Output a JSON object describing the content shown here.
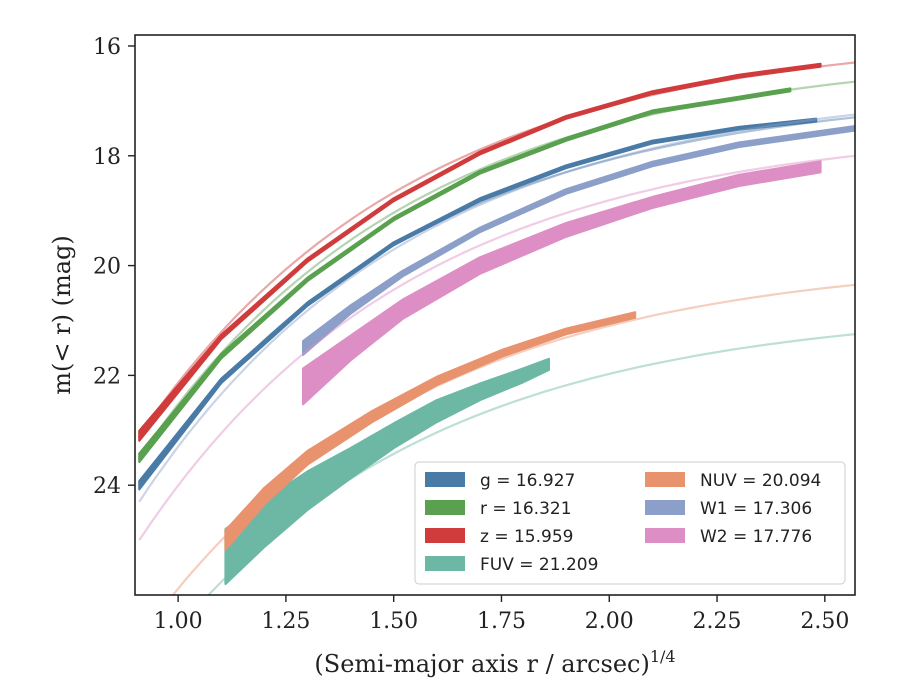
{
  "chart_data": {
    "type": "line",
    "xlabel": "(Semi-major axis r / arcsec)",
    "xlabel_exponent": "1/4",
    "ylabel": "m(< r) (mag)",
    "xlim": [
      0.9,
      2.57
    ],
    "ylim": [
      26.0,
      15.8
    ],
    "y_inverted": true,
    "xticks": [
      "1.00",
      "1.25",
      "1.50",
      "1.75",
      "2.00",
      "2.25",
      "2.50"
    ],
    "yticks": [
      "16",
      "18",
      "20",
      "22",
      "24"
    ],
    "grid": false,
    "legend_placement": "lower-right",
    "series": [
      {
        "name": "g = 16.927",
        "color": "#4a7ba7",
        "legend_column": 0,
        "legend_row": 0,
        "ext_x": [
          0.91,
          2.57
        ],
        "ext_y": [
          24.0,
          17.3
        ],
        "main_x": [
          0.91,
          1.1,
          1.3,
          1.5,
          1.7,
          1.9,
          2.1,
          2.3,
          2.48
        ],
        "main_y": [
          24.0,
          22.1,
          20.7,
          19.6,
          18.8,
          18.2,
          17.75,
          17.5,
          17.35
        ],
        "width": [
          0.15,
          0.08,
          0.06,
          0.05,
          0.05,
          0.05,
          0.05,
          0.05,
          0.05
        ]
      },
      {
        "name": "r = 16.321",
        "color": "#59a14f",
        "legend_column": 0,
        "legend_row": 1,
        "ext_x": [
          0.91,
          2.57
        ],
        "ext_y": [
          23.5,
          16.65
        ],
        "main_x": [
          0.91,
          1.1,
          1.3,
          1.5,
          1.7,
          1.9,
          2.1,
          2.3,
          2.42
        ],
        "main_y": [
          23.5,
          21.65,
          20.25,
          19.15,
          18.3,
          17.7,
          17.2,
          16.95,
          16.8
        ],
        "width": [
          0.15,
          0.08,
          0.06,
          0.05,
          0.05,
          0.05,
          0.05,
          0.05,
          0.05
        ]
      },
      {
        "name": "z = 15.959",
        "color": "#d03b3b",
        "legend_column": 0,
        "legend_row": 2,
        "ext_x": [
          0.91,
          2.57
        ],
        "ext_y": [
          23.1,
          16.3
        ],
        "main_x": [
          0.91,
          1.1,
          1.3,
          1.5,
          1.7,
          1.9,
          2.1,
          2.3,
          2.49
        ],
        "main_y": [
          23.1,
          21.3,
          19.9,
          18.8,
          17.95,
          17.3,
          16.85,
          16.55,
          16.35
        ],
        "width": [
          0.18,
          0.08,
          0.06,
          0.05,
          0.05,
          0.05,
          0.05,
          0.05,
          0.05
        ]
      },
      {
        "name": "FUV = 21.209",
        "color": "#6cb8a4",
        "legend_column": 0,
        "legend_row": 3,
        "ext_x": [
          0.91,
          2.57
        ],
        "ext_y": [
          27.5,
          21.25
        ],
        "main_x": [
          1.11,
          1.2,
          1.3,
          1.4,
          1.5,
          1.6,
          1.7,
          1.8,
          1.86
        ],
        "main_y": [
          25.3,
          24.7,
          24.1,
          23.6,
          23.1,
          22.65,
          22.3,
          22.0,
          21.8
        ],
        "width": [
          1.0,
          0.85,
          0.7,
          0.55,
          0.45,
          0.4,
          0.3,
          0.25,
          0.2
        ]
      },
      {
        "name": "NUV = 20.094",
        "color": "#e8926e",
        "legend_column": 1,
        "legend_row": 0,
        "ext_x": [
          0.91,
          2.57
        ],
        "ext_y": [
          26.8,
          20.35
        ],
        "main_x": [
          1.11,
          1.2,
          1.3,
          1.45,
          1.6,
          1.75,
          1.9,
          2.06
        ],
        "main_y": [
          25.0,
          24.2,
          23.5,
          22.75,
          22.1,
          21.6,
          21.2,
          20.9
        ],
        "width": [
          0.35,
          0.3,
          0.25,
          0.2,
          0.15,
          0.12,
          0.1,
          0.1
        ]
      },
      {
        "name": "W1 = 17.306",
        "color": "#8c9fc8",
        "legend_column": 1,
        "legend_row": 1,
        "ext_x": [
          0.91,
          2.57
        ],
        "ext_y": [
          24.3,
          17.25
        ],
        "main_x": [
          1.29,
          1.4,
          1.52,
          1.7,
          1.9,
          2.1,
          2.3,
          2.57
        ],
        "main_y": [
          21.5,
          20.8,
          20.15,
          19.35,
          18.65,
          18.15,
          17.8,
          17.5
        ],
        "width": [
          0.25,
          0.15,
          0.1,
          0.08,
          0.08,
          0.08,
          0.08,
          0.08
        ]
      },
      {
        "name": "W2 = 17.776",
        "color": "#dd8fc5",
        "legend_column": 1,
        "legend_row": 2,
        "ext_x": [
          0.91,
          2.57
        ],
        "ext_y": [
          25.0,
          18.0
        ],
        "main_x": [
          1.29,
          1.4,
          1.52,
          1.7,
          1.9,
          2.1,
          2.3,
          2.49
        ],
        "main_y": [
          22.2,
          21.5,
          20.8,
          20.0,
          19.35,
          18.85,
          18.45,
          18.2
        ],
        "width": [
          0.65,
          0.45,
          0.35,
          0.3,
          0.25,
          0.2,
          0.2,
          0.2
        ]
      }
    ]
  }
}
